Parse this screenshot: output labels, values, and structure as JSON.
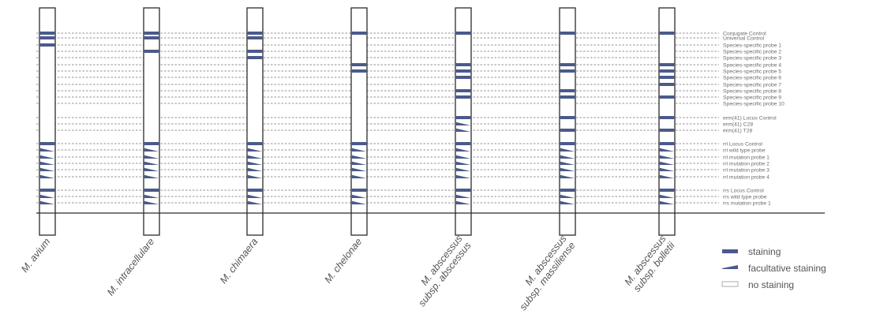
{
  "probes": [
    "Conjugate Control",
    "Universal Control",
    "Species-specific probe 1",
    "Species-specific probe 2",
    "Species-specific probe 3",
    "Species-specific probe 4",
    "Species-specific probe 5",
    "Species-specific probe 6",
    "Species-specific probe 7",
    "Species-specific probe 8",
    "Species-specific probe 9",
    "Species-specific probe 10",
    "erm(41) Locus Control",
    "erm(41) C28",
    "erm(41) T28",
    "rrl Locus Control",
    "rrl wild type probe",
    "rrl mutation probe 1",
    "rrl mutation probe 2",
    "rrl mutation probe 3",
    "rrl mutation probe 4",
    "rrs Locus Control",
    "rrs wild type probe",
    "rrs mutation probe 1"
  ],
  "strips": [
    {
      "name": "M. avium",
      "staining": [
        0,
        1,
        2,
        15,
        21
      ],
      "facultative": [
        16,
        17,
        18,
        19,
        20,
        22,
        23
      ]
    },
    {
      "name": "M. intracellulare",
      "staining": [
        0,
        1,
        3,
        15,
        21
      ],
      "facultative": [
        16,
        17,
        18,
        19,
        20,
        22,
        23
      ]
    },
    {
      "name": "M. chimaera",
      "staining": [
        0,
        1,
        3,
        4,
        15,
        21
      ],
      "facultative": [
        16,
        17,
        18,
        19,
        20,
        22,
        23
      ]
    },
    {
      "name": "M. chelonae",
      "staining": [
        0,
        5,
        6,
        15,
        21
      ],
      "facultative": [
        16,
        17,
        18,
        19,
        20,
        22,
        23
      ]
    },
    {
      "name": "M. abscessus subsp. abscessus",
      "staining": [
        0,
        5,
        6,
        7,
        9,
        10,
        12,
        15,
        21
      ],
      "facultative": [
        13,
        14,
        16,
        17,
        18,
        19,
        20,
        22,
        23
      ]
    },
    {
      "name": "M. abscessus subsp. massiliense",
      "staining": [
        0,
        5,
        6,
        9,
        10,
        12,
        14,
        15,
        21
      ],
      "facultative": [
        16,
        17,
        18,
        19,
        20,
        22,
        23
      ]
    },
    {
      "name": "M. abscessus subsp. bolletii",
      "staining": [
        0,
        5,
        6,
        7,
        8,
        10,
        12,
        14,
        15,
        21
      ],
      "facultative": [
        16,
        17,
        18,
        19,
        20,
        22,
        23
      ]
    }
  ],
  "strip_labels": [
    [
      "M. avium"
    ],
    [
      "M. intracellulare"
    ],
    [
      "M. chimaera"
    ],
    [
      "M. chelonae"
    ],
    [
      "M. abscessus",
      "subsp. abscessus"
    ],
    [
      "M. abscessus",
      "subsp. massiliense"
    ],
    [
      "M. abscessus",
      "subsp. bolletii"
    ]
  ],
  "legend": {
    "staining": "staining",
    "facultative": "facultative staining",
    "none": "no staining"
  },
  "colors": {
    "band": "#4a5a8c",
    "strip_border": "#2b2b2b",
    "dashed_line": "#6d6d6d",
    "label_text": "#6a6a6a"
  }
}
